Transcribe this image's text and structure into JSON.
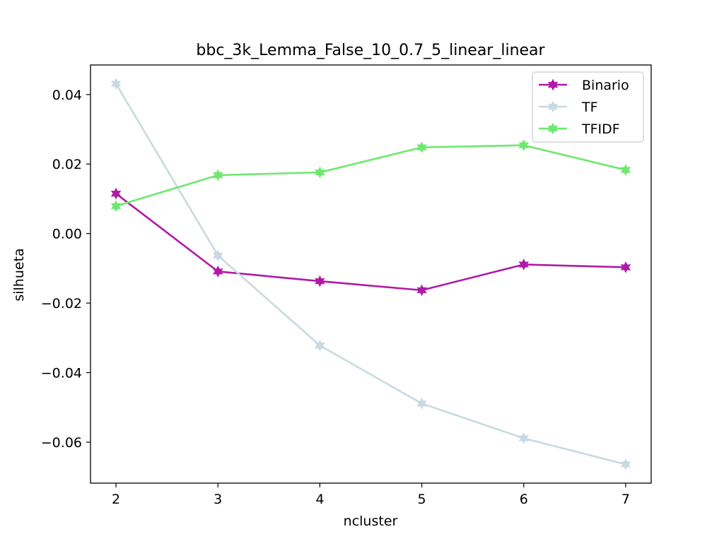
{
  "chart_data": {
    "type": "line",
    "title": "bbc_3k_Lemma_False_10_0.7_5_linear_linear",
    "xlabel": "ncluster",
    "ylabel": "silhueta",
    "x": [
      2,
      3,
      4,
      5,
      6,
      7
    ],
    "xticks": [
      "2",
      "3",
      "4",
      "5",
      "6",
      "7"
    ],
    "xlim": [
      1.75,
      7.25
    ],
    "ylim": [
      -0.0718,
      0.0485
    ],
    "yticks": [
      0.04,
      0.02,
      0.0,
      -0.02,
      -0.04,
      -0.06
    ],
    "ytick_labels": [
      "0.04",
      "0.02",
      "0.00",
      "−0.02",
      "−0.04",
      "−0.06"
    ],
    "grid": false,
    "legend": "top-right",
    "series": [
      {
        "name": "Binario",
        "color": "#b01aa6",
        "marker": "star",
        "values": [
          0.0115,
          -0.0109,
          -0.0137,
          -0.0163,
          -0.0089,
          -0.0097
        ]
      },
      {
        "name": "TF",
        "color": "#c8dae0",
        "marker": "star",
        "values": [
          0.0431,
          -0.0063,
          -0.0322,
          -0.0489,
          -0.0589,
          -0.0664
        ]
      },
      {
        "name": "TFIDF",
        "color": "#6ee86e",
        "marker": "star",
        "values": [
          0.0079,
          0.0168,
          0.0176,
          0.0248,
          0.0254,
          0.0183
        ]
      }
    ]
  }
}
